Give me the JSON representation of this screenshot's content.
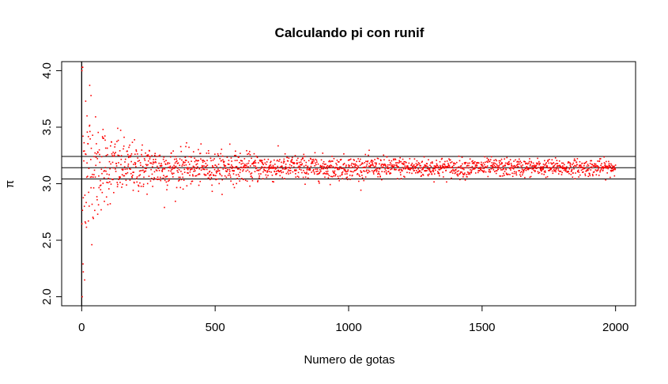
{
  "chart_data": {
    "type": "scatter",
    "title": "Calculando pi con runif",
    "xlabel": "Numero de gotas",
    "ylabel": "π",
    "xlim": [
      -75,
      2075
    ],
    "ylim": [
      1.92,
      4.08
    ],
    "x_ticks": [
      0,
      500,
      1000,
      1500,
      2000
    ],
    "x_tick_labels": [
      "0",
      "500",
      "1000",
      "1500",
      "2000"
    ],
    "y_ticks": [
      2.0,
      2.5,
      3.0,
      3.5,
      4.0
    ],
    "y_tick_labels": [
      "2.0",
      "2.5",
      "3.0",
      "3.5",
      "4.0"
    ],
    "vertical_lines": [
      0
    ],
    "horizontal_lines": [
      3.04159,
      3.14159,
      3.24159
    ],
    "point_color": "#ff0000",
    "line_color": "#000000",
    "grid": false,
    "series": [
      {
        "x_range": [
          1,
          2000
        ],
        "y_center": 3.14159,
        "convergence": "scatter around pi narrows as number of drops increases",
        "notable_points": [
          {
            "x": 1,
            "y": 4.0
          },
          {
            "x": 2,
            "y": 2.0
          },
          {
            "x": 5,
            "y": 2.29
          },
          {
            "x": 6,
            "y": 2.22
          },
          {
            "x": 10,
            "y": 2.8
          },
          {
            "x": 15,
            "y": 3.73
          },
          {
            "x": 20,
            "y": 3.6
          },
          {
            "x": 25,
            "y": 2.67
          },
          {
            "x": 30,
            "y": 3.87
          },
          {
            "x": 35,
            "y": 3.78
          },
          {
            "x": 60,
            "y": 2.73
          },
          {
            "x": 80,
            "y": 3.48
          },
          {
            "x": 135,
            "y": 3.49
          },
          {
            "x": 310,
            "y": 2.79
          },
          {
            "x": 555,
            "y": 3.35
          }
        ]
      }
    ]
  }
}
